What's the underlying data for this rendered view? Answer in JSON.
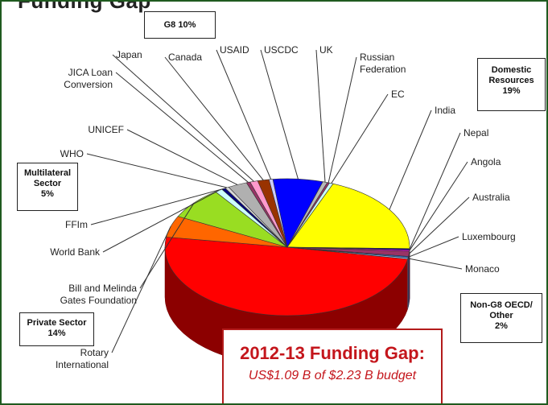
{
  "title_fragment": "Funding Gap",
  "boxes": {
    "g8": "G8  10%",
    "domestic_title": "Domestic Resources",
    "domestic_pct": "19%",
    "multilateral_title": "Multilateral Sector",
    "multilateral_pct": "5%",
    "private_title": "Private Sector",
    "private_pct": "14%",
    "nong8_title": "Non-G8 OECD/ Other",
    "nong8_pct": "2%"
  },
  "gap": {
    "title": "2012-13 Funding Gap:",
    "subtitle": "US$1.09 B of $2.23 B budget"
  },
  "chart_data": {
    "type": "pie",
    "slices": [
      {
        "label": "",
        "value": 49,
        "color": "#ff0000"
      },
      {
        "label": "Rotary International",
        "value": 5,
        "color": "#ff6600"
      },
      {
        "label": "Bill and Melinda Gates Foundation",
        "value": 7.5,
        "color": "#99dd22"
      },
      {
        "label": "World Bank",
        "value": 1,
        "color": "#ccffff"
      },
      {
        "label": "FFIm",
        "value": 0.5,
        "color": "#000080"
      },
      {
        "label": "WHO",
        "value": 0.5,
        "color": "#d9d9d9"
      },
      {
        "label": "UNICEF",
        "value": 2.5,
        "color": "#b0b0b0"
      },
      {
        "label": "JICA Loan Conversion",
        "value": 0.5,
        "color": "#993366"
      },
      {
        "label": "Japan",
        "value": 1,
        "color": "#ff99cc"
      },
      {
        "label": "Canada",
        "value": 1.5,
        "color": "#993300"
      },
      {
        "label": "USAID",
        "value": 0.5,
        "color": "#ccccff"
      },
      {
        "label": "USCDC",
        "value": 6.5,
        "color": "#0000ff"
      },
      {
        "label": "UK",
        "value": 0.6,
        "color": "#b8b8b8"
      },
      {
        "label": "Russian Federation",
        "value": 0.3,
        "color": "#993366"
      },
      {
        "label": "EC",
        "value": 0.5,
        "color": "#ccffff"
      },
      {
        "label": "India",
        "value": 19,
        "color": "#ffff00"
      },
      {
        "label": "Nepal",
        "value": 0.3,
        "color": "#000080"
      },
      {
        "label": "Angola",
        "value": 0.3,
        "color": "#ff00ff"
      },
      {
        "label": "Australia",
        "value": 1.2,
        "color": "#993366"
      },
      {
        "label": "Luxembourg",
        "value": 0.3,
        "color": "#3366cc"
      },
      {
        "label": "Monaco",
        "value": 0.3,
        "color": "#99ccff"
      }
    ]
  }
}
